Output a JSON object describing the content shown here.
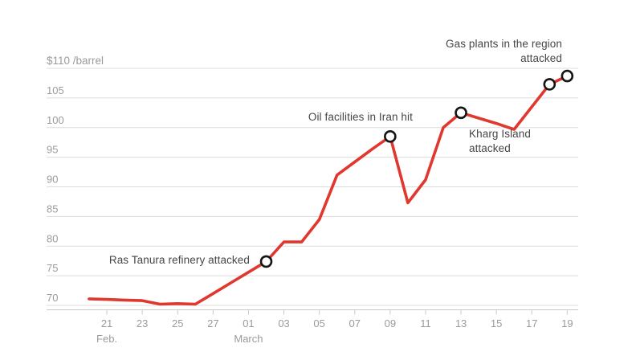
{
  "chart_data": {
    "type": "line",
    "title": "",
    "unit_label": "$110 /barrel",
    "xlabel": "",
    "ylabel": "$ per barrel",
    "ylim": [
      70,
      110
    ],
    "yticks": [
      70,
      75,
      80,
      85,
      90,
      95,
      100,
      105,
      110
    ],
    "grid": true,
    "legend": false,
    "line_color": "#e0372e",
    "marker_fill": "#ffffff",
    "marker_stroke": "#151515",
    "grid_color": "#dcdcdc",
    "axis_color": "#c9c9c9",
    "tick_text_color": "#9b9b9b",
    "x": [
      "Feb. 20",
      "Feb. 21",
      "Feb. 22",
      "Feb. 23",
      "Feb. 24",
      "Feb. 25",
      "Feb. 26",
      "Feb. 27",
      "Feb. 28",
      "March 01",
      "March 02",
      "March 03",
      "March 04",
      "March 05",
      "March 06",
      "March 07",
      "March 08",
      "March 09",
      "March 10",
      "March 11",
      "March 12",
      "March 13",
      "March 14",
      "March 15",
      "March 16",
      "March 17",
      "March 18",
      "March 19"
    ],
    "values": [
      71.1,
      71.0,
      70.9,
      70.8,
      70.2,
      70.3,
      70.2,
      72.0,
      73.8,
      75.6,
      77.4,
      80.7,
      80.7,
      84.5,
      92.0,
      94.2,
      96.4,
      98.5,
      87.3,
      91.2,
      100.0,
      102.5,
      101.6,
      100.7,
      99.7,
      103.5,
      107.3,
      108.7
    ],
    "xticks": [
      {
        "index": 1,
        "label": "21"
      },
      {
        "index": 3,
        "label": "23"
      },
      {
        "index": 5,
        "label": "25"
      },
      {
        "index": 7,
        "label": "27"
      },
      {
        "index": 9,
        "label": "01"
      },
      {
        "index": 11,
        "label": "03"
      },
      {
        "index": 13,
        "label": "05"
      },
      {
        "index": 15,
        "label": "07"
      },
      {
        "index": 17,
        "label": "09"
      },
      {
        "index": 19,
        "label": "11"
      },
      {
        "index": 21,
        "label": "13"
      },
      {
        "index": 23,
        "label": "15"
      },
      {
        "index": 25,
        "label": "17"
      },
      {
        "index": 27,
        "label": "19"
      }
    ],
    "month_labels": [
      {
        "index": 1,
        "label": "Feb."
      },
      {
        "index": 9,
        "label": "March"
      }
    ],
    "events": [
      {
        "index": 10,
        "label": "Ras Tanura refinery attacked"
      },
      {
        "index": 17,
        "label": "Oil facilities in Iran hit"
      },
      {
        "index": 21,
        "label": "Kharg Island attacked"
      },
      {
        "index": 26,
        "label": "Gas plants in the region attacked"
      },
      {
        "index": 27,
        "label": "Gas plants in the region attacked"
      }
    ]
  },
  "annotations": {
    "ras_tanura": {
      "text": "Ras Tanura refinery attacked"
    },
    "iran": {
      "text": "Oil facilities in Iran hit"
    },
    "kharg": {
      "line1": "Kharg Island",
      "line2": "attacked"
    },
    "gas": {
      "line1": "Gas plants in the region",
      "line2": "attacked"
    }
  }
}
